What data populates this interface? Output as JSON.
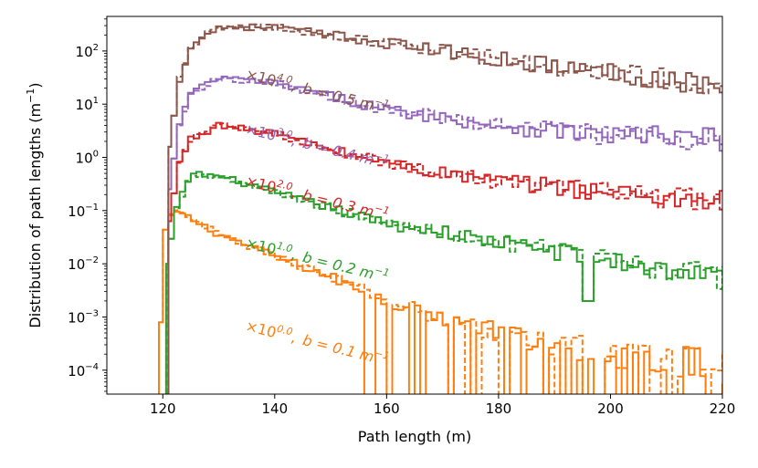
{
  "chart_data": {
    "type": "line",
    "title": "",
    "xlabel": "Path length (m)",
    "ylabel": "Distribution of path lengths (m",
    "ylabel_sup": "−1",
    "ylabel_close": ")",
    "xlim": [
      110,
      220
    ],
    "ylim_log10": [
      -4.45,
      2.65
    ],
    "yscale": "log",
    "x_ticks": [
      {
        "value": 120,
        "label": "120"
      },
      {
        "value": 140,
        "label": "140"
      },
      {
        "value": 160,
        "label": "160"
      },
      {
        "value": 180,
        "label": "180"
      },
      {
        "value": 200,
        "label": "200"
      },
      {
        "value": 220,
        "label": "220"
      }
    ],
    "y_ticks": [
      {
        "exp": 2,
        "base": "10",
        "sup": "2"
      },
      {
        "exp": 1,
        "base": "10",
        "sup": "1"
      },
      {
        "exp": 0,
        "base": "10",
        "sup": "0"
      },
      {
        "exp": -1,
        "base": "10",
        "sup": "−1"
      },
      {
        "exp": -2,
        "base": "10",
        "sup": "−2"
      },
      {
        "exp": -3,
        "base": "10",
        "sup": "−3"
      },
      {
        "exp": -4,
        "base": "10",
        "sup": "−4"
      }
    ],
    "line_styles": [
      "solid",
      "dashed"
    ],
    "series": [
      {
        "name": "b = 0.1",
        "color": "#ff7f0e",
        "offset_exp": 0,
        "b": "0.1",
        "label": {
          "times": "×10",
          "sup": "0.0",
          "sep": ",",
          "b_eq": "b = 0.1 m",
          "unit_sup": "−1"
        },
        "profile": {
          "x": [
            120,
            122,
            125,
            130,
            140,
            150,
            160,
            170,
            180,
            190,
            200,
            210,
            220
          ],
          "log10y": [
            -1.5,
            -1.0,
            -1.15,
            -1.45,
            -1.85,
            -2.25,
            -2.7,
            -3.0,
            -3.3,
            -3.5,
            -3.7,
            -3.8,
            -3.95
          ]
        },
        "pre_x": 119.3,
        "onset_log10y": -3.1,
        "floor_x": 155
      },
      {
        "name": "b = 0.2",
        "color": "#2ca02c",
        "offset_exp": 1,
        "b": "0.2",
        "label": {
          "times": "×10",
          "sup": "1.0",
          "sep": ",",
          "b_eq": "b = 0.2 m",
          "unit_sup": "−1"
        },
        "profile": {
          "x": [
            121,
            122,
            125,
            130,
            140,
            150,
            160,
            170,
            180,
            190,
            200,
            210,
            220
          ],
          "log10y": [
            -2.0,
            -1.1,
            -0.3,
            -0.35,
            -0.65,
            -0.95,
            -1.25,
            -1.4,
            -1.6,
            -1.75,
            -1.95,
            -2.1,
            -2.25
          ]
        },
        "pre_x": 120.6,
        "onset_log10y": -2.0,
        "floor_x": 999
      },
      {
        "name": "b = 0.3",
        "color": "#d62728",
        "offset_exp": 2,
        "b": "0.3",
        "label": {
          "times": "×10",
          "sup": "2.0",
          "sep": ",",
          "b_eq": "b = 0.3 m",
          "unit_sup": "−1"
        },
        "profile": {
          "x": [
            121.5,
            122.5,
            125,
            130,
            140,
            150,
            160,
            170,
            180,
            190,
            200,
            210,
            220
          ],
          "log10y": [
            -1.2,
            -0.2,
            0.35,
            0.6,
            0.45,
            0.15,
            -0.1,
            -0.3,
            -0.45,
            -0.55,
            -0.65,
            -0.75,
            -0.82
          ]
        },
        "pre_x": 121.0,
        "onset_log10y": -1.2,
        "floor_x": 999
      },
      {
        "name": "b = 0.4",
        "color": "#9467bd",
        "offset_exp": 3,
        "b": "0.4",
        "label": {
          "times": "×10",
          "sup": "3.0",
          "sep": ",",
          "b_eq": "b = 0.4 m",
          "unit_sup": "−1"
        },
        "profile": {
          "x": [
            121.5,
            122.5,
            125,
            130,
            140,
            150,
            160,
            170,
            180,
            190,
            200,
            210,
            220
          ],
          "log10y": [
            -0.6,
            0.5,
            1.2,
            1.5,
            1.4,
            1.15,
            0.9,
            0.75,
            0.6,
            0.5,
            0.42,
            0.38,
            0.33
          ]
        },
        "pre_x": 121.0,
        "onset_log10y": -0.6,
        "floor_x": 999
      },
      {
        "name": "b = 0.5",
        "color": "#8c564b",
        "offset_exp": 4,
        "b": "0.5",
        "label": {
          "times": "×10",
          "sup": "4.0",
          "sep": ",",
          "b_eq": "b = 0.5 m",
          "unit_sup": "−1"
        },
        "profile": {
          "x": [
            121.5,
            122.5,
            125,
            130,
            140,
            150,
            160,
            170,
            180,
            190,
            200,
            210,
            220
          ],
          "log10y": [
            0.2,
            1.3,
            2.1,
            2.45,
            2.45,
            2.3,
            2.15,
            2.0,
            1.85,
            1.72,
            1.6,
            1.48,
            1.35
          ]
        },
        "pre_x": 121.0,
        "onset_log10y": 0.2,
        "floor_x": 999
      }
    ]
  }
}
